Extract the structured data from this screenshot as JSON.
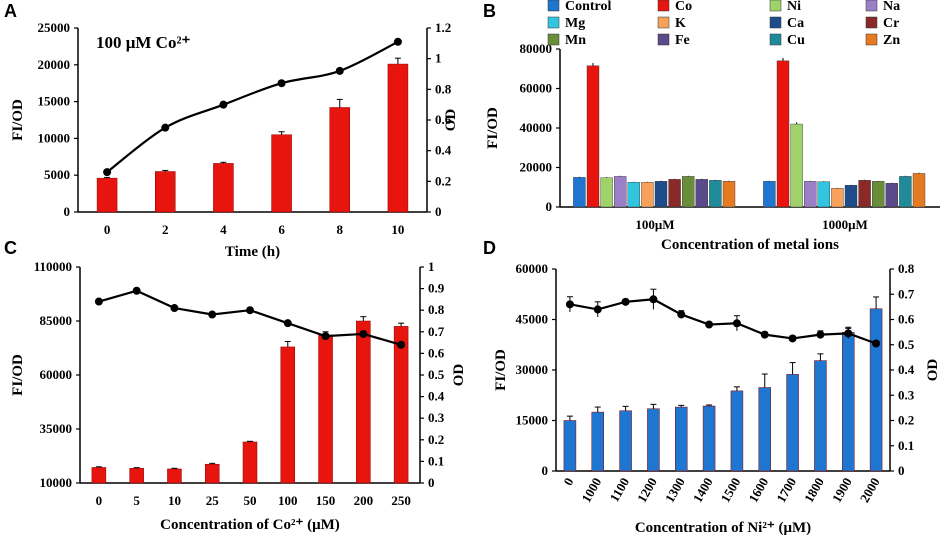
{
  "chart_data": [
    {
      "panel": "A",
      "type": "bar",
      "annotation": "100 μM Co²⁺",
      "categories": [
        "0",
        "2",
        "4",
        "6",
        "8",
        "10"
      ],
      "xlabel": "Time (h)",
      "ylabel": "FI/OD",
      "ylabel_right": "OD",
      "ylim": [
        0,
        25000
      ],
      "yticks": [
        "0",
        "5000",
        "10000",
        "15000",
        "20000",
        "25000"
      ],
      "ylim_right": [
        0,
        1.2
      ],
      "yticks_right": [
        "0",
        "0.2",
        "0.4",
        "0.6",
        "0.8",
        "1",
        "1.2"
      ],
      "bar_color": "#e8150f",
      "series": [
        {
          "name": "FI/OD",
          "kind": "bar",
          "values": [
            4600,
            5500,
            6600,
            10500,
            14200,
            20100
          ],
          "errors": [
            100,
            150,
            150,
            400,
            1100,
            800
          ]
        },
        {
          "name": "OD",
          "kind": "line",
          "values": [
            0.26,
            0.55,
            0.7,
            0.84,
            0.92,
            1.11
          ]
        }
      ]
    },
    {
      "panel": "B",
      "type": "bar",
      "categories": [
        "100μM",
        "1000μM"
      ],
      "xlabel": "Concentration of metal ions",
      "ylabel": "FI/OD",
      "ylim": [
        0,
        80000
      ],
      "yticks": [
        "0",
        "20000",
        "40000",
        "60000",
        "80000"
      ],
      "series": [
        {
          "name": "Control",
          "color": "#1f76d0",
          "values": [
            15000,
            13000
          ]
        },
        {
          "name": "Co",
          "color": "#e8150f",
          "values": [
            71500,
            74000
          ]
        },
        {
          "name": "Ni",
          "color": "#9fd36a",
          "values": [
            14800,
            42000
          ]
        },
        {
          "name": "Na",
          "color": "#9b80c8",
          "values": [
            15500,
            13000
          ]
        },
        {
          "name": "Mg",
          "color": "#33c4e0",
          "values": [
            12500,
            12800
          ]
        },
        {
          "name": "K",
          "color": "#f7a25a",
          "values": [
            12500,
            9500
          ]
        },
        {
          "name": "Ca",
          "color": "#1f4d8c",
          "values": [
            13000,
            11000
          ]
        },
        {
          "name": "Cr",
          "color": "#8a2a28",
          "values": [
            14000,
            13500
          ]
        },
        {
          "name": "Mn",
          "color": "#6a8d3a",
          "values": [
            15500,
            13000
          ]
        },
        {
          "name": "Fe",
          "color": "#5a4a8a",
          "values": [
            14000,
            12000
          ]
        },
        {
          "name": "Cu",
          "color": "#1f8a9a",
          "values": [
            13500,
            15500
          ]
        },
        {
          "name": "Zn",
          "color": "#e67a20",
          "values": [
            13000,
            17000
          ]
        }
      ]
    },
    {
      "panel": "C",
      "type": "bar",
      "categories": [
        "0",
        "5",
        "10",
        "25",
        "50",
        "100",
        "150",
        "200",
        "250"
      ],
      "xlabel": "Concentration of Co²⁺ (μM)",
      "ylabel": "FI/OD",
      "ylabel_right": "OD",
      "ylim": [
        10000,
        110000
      ],
      "yticks": [
        "10000",
        "35000",
        "60000",
        "85000",
        "110000"
      ],
      "ylim_right": [
        0,
        1
      ],
      "yticks_right": [
        "0",
        "0.1",
        "0.2",
        "0.3",
        "0.4",
        "0.5",
        "0.6",
        "0.7",
        "0.8",
        "0.9",
        "1"
      ],
      "bar_color": "#e8150f",
      "series": [
        {
          "name": "FI/OD",
          "kind": "bar",
          "values": [
            17200,
            16800,
            16500,
            18700,
            29000,
            73000,
            78500,
            85000,
            82500
          ],
          "errors": [
            300,
            300,
            300,
            400,
            300,
            2500,
            1500,
            2000,
            1500
          ]
        },
        {
          "name": "OD",
          "kind": "line",
          "values": [
            0.84,
            0.89,
            0.81,
            0.78,
            0.8,
            0.74,
            0.68,
            0.69,
            0.64
          ]
        }
      ]
    },
    {
      "panel": "D",
      "type": "bar",
      "categories": [
        "0",
        "1000",
        "1100",
        "1200",
        "1300",
        "1400",
        "1500",
        "1600",
        "1700",
        "1800",
        "1900",
        "2000"
      ],
      "xlabel": "Concentration of Ni²⁺ (μM)",
      "ylabel": "FI/OD",
      "ylabel_right": "OD",
      "ylim": [
        0,
        60000
      ],
      "yticks": [
        "0",
        "15000",
        "30000",
        "45000",
        "60000"
      ],
      "ylim_right": [
        0,
        0.8
      ],
      "yticks_right": [
        "0",
        "0.1",
        "0.2",
        "0.3",
        "0.4",
        "0.5",
        "0.6",
        "0.7",
        "0.8"
      ],
      "bar_color": "#1f76d0",
      "series": [
        {
          "name": "FI/OD",
          "kind": "bar",
          "values": [
            15000,
            17500,
            17900,
            18500,
            19000,
            19300,
            23800,
            24800,
            28700,
            32800,
            41200,
            48200
          ],
          "errors": [
            1300,
            1500,
            1300,
            1300,
            500,
            300,
            1200,
            4000,
            3500,
            2000,
            1500,
            3500
          ]
        },
        {
          "name": "OD",
          "kind": "line",
          "values": [
            0.66,
            0.64,
            0.67,
            0.68,
            0.62,
            0.58,
            0.585,
            0.54,
            0.525,
            0.54,
            0.545,
            0.505
          ],
          "errors": [
            0.03,
            0.03,
            0.01,
            0.04,
            0.015,
            0.01,
            0.03,
            0.01,
            0.01,
            0.015,
            0.02,
            0.01
          ]
        }
      ]
    }
  ]
}
